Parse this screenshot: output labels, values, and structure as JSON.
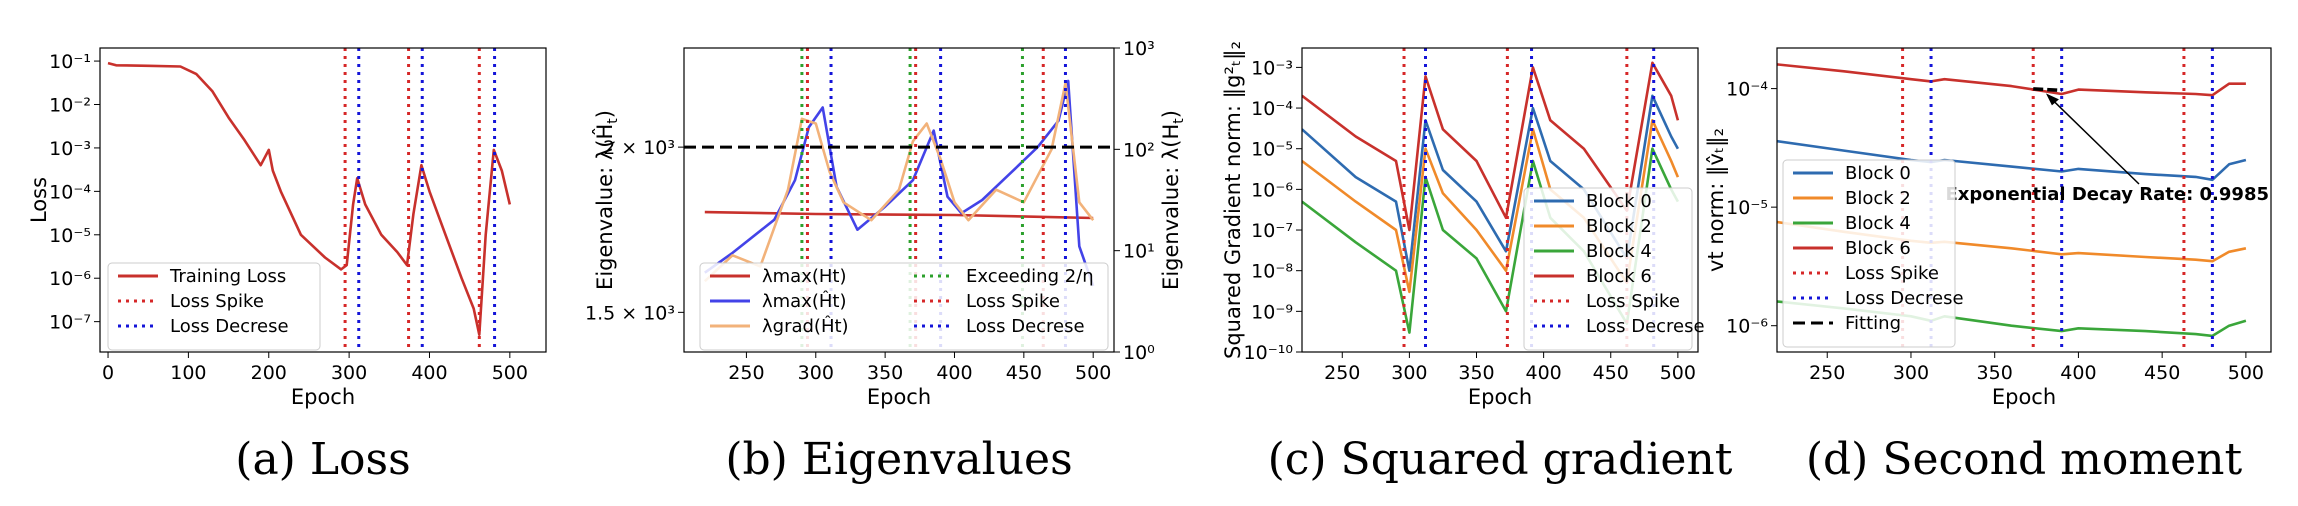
{
  "colors": {
    "red": "#c8312c",
    "blue": "#4343e8",
    "orange": "#f2b27a",
    "green": "#2ca02c",
    "dred": "#d62728",
    "dblue": "#1414d8",
    "black": "#000000",
    "b0": "#2e6bb0",
    "b2": "#f08a2a",
    "b4": "#3aa63a",
    "b6": "#c8312c"
  },
  "chart_data": [
    {
      "type": "line",
      "caption": "(a) Loss",
      "xlabel": "Epoch",
      "ylabel": "Loss",
      "yscale": "log",
      "xlim": [
        -10,
        545
      ],
      "ylim": [
        2e-08,
        0.2
      ],
      "xticks": [
        0,
        100,
        200,
        300,
        400,
        500
      ],
      "yticks": [
        {
          "v": 1e-07,
          "label": "10⁻⁷"
        },
        {
          "v": 1e-06,
          "label": "10⁻⁶"
        },
        {
          "v": 1e-05,
          "label": "10⁻⁵"
        },
        {
          "v": 0.0001,
          "label": "10⁻⁴"
        },
        {
          "v": 0.001,
          "label": "10⁻³"
        },
        {
          "v": 0.01,
          "label": "10⁻²"
        },
        {
          "v": 0.1,
          "label": "10⁻¹"
        }
      ],
      "series": [
        {
          "name": "Training Loss",
          "color": "red",
          "x": [
            0,
            10,
            50,
            90,
            110,
            130,
            150,
            170,
            190,
            200,
            205,
            215,
            240,
            270,
            290,
            297,
            305,
            310,
            320,
            340,
            360,
            372,
            380,
            390,
            400,
            420,
            440,
            455,
            462,
            470,
            480,
            490,
            500
          ],
          "y": [
            0.09,
            0.08,
            0.078,
            0.075,
            0.05,
            0.02,
            0.005,
            0.0015,
            0.0004,
            0.0009,
            0.0003,
            0.0001,
            1e-05,
            3e-06,
            1.6e-06,
            2e-06,
            5e-05,
            0.0002,
            5e-05,
            1e-05,
            4e-06,
            2e-06,
            3e-05,
            0.0004,
            0.0001,
            1e-05,
            1e-06,
            2e-07,
            5e-08,
            1e-05,
            0.0009,
            0.0003,
            5e-05
          ]
        }
      ],
      "vlines": [
        {
          "name": "Loss Spike",
          "color": "dred",
          "x": [
            295,
            374,
            462
          ]
        },
        {
          "name": "Loss Decrese",
          "color": "dblue",
          "x": [
            312,
            391,
            481
          ]
        }
      ],
      "legend": {
        "position": "lower-left",
        "entries": [
          {
            "label": "Training Loss",
            "color": "red",
            "style": "solid"
          },
          {
            "label": "Loss Spike",
            "color": "dred",
            "style": "dotted"
          },
          {
            "label": "Loss Decrese",
            "color": "dblue",
            "style": "dotted"
          }
        ]
      }
    },
    {
      "type": "line",
      "caption": "(b) Eigenvalues",
      "xlabel": "Epoch",
      "ylabel": "Eigenvalue: λ(Ĥ",
      "ylabel_sub": "t",
      "ylabel_close": ")",
      "ylabel_right": "Eigenvalue: λ(H",
      "ylabel_right_sub": "t",
      "ylabel_right_close": ")",
      "xlim": [
        205,
        515
      ],
      "ylim": [
        1.38,
        2.3
      ],
      "yscale_right": "log",
      "ylim_right": [
        1,
        1000
      ],
      "xticks": [
        250,
        300,
        350,
        400,
        450,
        500
      ],
      "yticks": [
        {
          "v": 1.5,
          "label": "1.5 × 10³"
        },
        {
          "v": 2.0,
          "label": "2 × 10³"
        }
      ],
      "yticks_right": [
        {
          "v": 1,
          "label": "10⁰"
        },
        {
          "v": 10,
          "label": "10¹"
        },
        {
          "v": 100,
          "label": "10²"
        },
        {
          "v": 1000,
          "label": "10³"
        }
      ],
      "hline": 2.0,
      "series": [
        {
          "name": "λmax(Ht)",
          "color": "red",
          "axis": "right",
          "x": [
            220,
            300,
            400,
            500
          ],
          "y": [
            24,
            23,
            22.5,
            21
          ]
        },
        {
          "name": "λmax(Ĥt)",
          "color": "blue",
          "axis": "left",
          "x": [
            220,
            240,
            270,
            285,
            295,
            305,
            315,
            330,
            350,
            370,
            385,
            395,
            405,
            420,
            440,
            460,
            475,
            482,
            490,
            500
          ],
          "y": [
            1.62,
            1.68,
            1.78,
            1.9,
            2.06,
            2.12,
            1.88,
            1.75,
            1.82,
            1.9,
            2.05,
            1.85,
            1.8,
            1.84,
            1.92,
            2.0,
            2.08,
            2.2,
            1.7,
            1.58
          ]
        },
        {
          "name": "λgrad(Ĥt)",
          "color": "orange",
          "axis": "right",
          "x": [
            220,
            240,
            260,
            280,
            290,
            300,
            310,
            320,
            340,
            360,
            370,
            380,
            390,
            400,
            410,
            430,
            450,
            470,
            480,
            490,
            500
          ],
          "y": [
            5,
            9,
            7,
            40,
            200,
            180,
            60,
            30,
            20,
            40,
            120,
            180,
            80,
            30,
            20,
            40,
            30,
            100,
            450,
            30,
            20
          ]
        }
      ],
      "vlines": [
        {
          "name": "Exceeding 2/η",
          "color": "green",
          "x": [
            290,
            368,
            449
          ]
        },
        {
          "name": "Loss Spike",
          "color": "dred",
          "x": [
            294,
            372,
            464
          ]
        },
        {
          "name": "Loss Decrese",
          "color": "dblue",
          "x": [
            311,
            390,
            480
          ]
        }
      ],
      "legend": {
        "position": "lower-right",
        "entries": [
          {
            "label": "λmax(Ht)",
            "color": "red",
            "style": "solid"
          },
          {
            "label": "λmax(Ĥt)",
            "color": "blue",
            "style": "solid"
          },
          {
            "label": "λgrad(Ĥt)",
            "color": "orange",
            "style": "solid"
          },
          {
            "label": "Exceeding 2/η",
            "color": "green",
            "style": "dotted"
          },
          {
            "label": "Loss Spike",
            "color": "dred",
            "style": "dotted"
          },
          {
            "label": "Loss Decrese",
            "color": "dblue",
            "style": "dotted"
          }
        ]
      }
    },
    {
      "type": "line",
      "caption": "(c) Squared gradient",
      "xlabel": "Epoch",
      "ylabel": "Squared Gradient norm: ‖g²ₜ‖₂",
      "yscale": "log",
      "xlim": [
        220,
        515
      ],
      "ylim": [
        1e-10,
        0.003
      ],
      "xticks": [
        250,
        300,
        350,
        400,
        450,
        500
      ],
      "yticks": [
        {
          "v": 1e-10,
          "label": "10⁻¹⁰"
        },
        {
          "v": 1e-09,
          "label": "10⁻⁹"
        },
        {
          "v": 1e-08,
          "label": "10⁻⁸"
        },
        {
          "v": 1e-07,
          "label": "10⁻⁷"
        },
        {
          "v": 1e-06,
          "label": "10⁻⁶"
        },
        {
          "v": 1e-05,
          "label": "10⁻⁵"
        },
        {
          "v": 0.0001,
          "label": "10⁻⁴"
        },
        {
          "v": 0.001,
          "label": "10⁻³"
        }
      ],
      "series": [
        {
          "name": "Block 0",
          "color": "b0",
          "x": [
            220,
            260,
            290,
            300,
            312,
            325,
            350,
            372,
            392,
            405,
            430,
            462,
            481,
            495,
            500
          ],
          "y": [
            3e-05,
            2e-06,
            5e-07,
            1e-08,
            5e-05,
            3e-06,
            5e-07,
            3e-08,
            0.0001,
            5e-06,
            1e-06,
            2e-08,
            0.0002,
            2e-05,
            1e-05
          ]
        },
        {
          "name": "Block 2",
          "color": "b2",
          "x": [
            220,
            260,
            290,
            300,
            312,
            325,
            350,
            372,
            392,
            405,
            430,
            462,
            481,
            495,
            500
          ],
          "y": [
            5e-06,
            5e-07,
            1e-07,
            3e-09,
            1e-05,
            8e-07,
            1e-07,
            1e-08,
            3e-05,
            1e-06,
            2e-07,
            5e-09,
            5e-05,
            5e-06,
            2e-06
          ]
        },
        {
          "name": "Block 4",
          "color": "b4",
          "x": [
            220,
            260,
            290,
            300,
            312,
            325,
            350,
            372,
            392,
            405,
            430,
            462,
            481,
            495,
            500
          ],
          "y": [
            5e-07,
            5e-08,
            1e-08,
            3e-10,
            2e-06,
            1e-07,
            2e-08,
            1e-09,
            5e-06,
            2e-07,
            3e-08,
            5e-10,
            1e-05,
            1e-06,
            5e-07
          ]
        },
        {
          "name": "Block 6",
          "color": "b6",
          "x": [
            220,
            260,
            290,
            300,
            312,
            325,
            350,
            372,
            392,
            405,
            430,
            462,
            481,
            495,
            500
          ],
          "y": [
            0.0002,
            2e-05,
            5e-06,
            1e-07,
            0.0006,
            3e-05,
            5e-06,
            2e-07,
            0.001,
            5e-05,
            1e-05,
            3e-07,
            0.0013,
            0.0002,
            5e-05
          ]
        }
      ],
      "vlines": [
        {
          "name": "Loss Spike",
          "color": "dred",
          "x": [
            296,
            373,
            462
          ]
        },
        {
          "name": "Loss Decrese",
          "color": "dblue",
          "x": [
            312,
            391,
            482
          ]
        }
      ],
      "legend": {
        "position": "lower-right",
        "entries": [
          {
            "label": "Block 0",
            "color": "b0",
            "style": "solid"
          },
          {
            "label": "Block 2",
            "color": "b2",
            "style": "solid"
          },
          {
            "label": "Block 4",
            "color": "b4",
            "style": "solid"
          },
          {
            "label": "Block 6",
            "color": "b6",
            "style": "solid"
          },
          {
            "label": "Loss Spike",
            "color": "dred",
            "style": "dotted"
          },
          {
            "label": "Loss Decrese",
            "color": "dblue",
            "style": "dotted"
          }
        ]
      }
    },
    {
      "type": "line",
      "caption": "(d) Second moment",
      "xlabel": "Epoch",
      "ylabel": "vt norm: ‖v̂ₜ‖₂",
      "yscale": "log",
      "xlim": [
        220,
        515
      ],
      "ylim": [
        6e-07,
        0.00022
      ],
      "xticks": [
        250,
        300,
        350,
        400,
        450,
        500
      ],
      "yticks": [
        {
          "v": 1e-06,
          "label": "10⁻⁶"
        },
        {
          "v": 1e-05,
          "label": "10⁻⁵"
        },
        {
          "v": 0.0001,
          "label": "10⁻⁴"
        }
      ],
      "series": [
        {
          "name": "Block 0",
          "color": "b0",
          "x": [
            220,
            260,
            300,
            312,
            320,
            360,
            390,
            400,
            440,
            470,
            480,
            490,
            500
          ],
          "y": [
            3.6e-05,
            3e-05,
            2.5e-05,
            2.4e-05,
            2.5e-05,
            2.2e-05,
            2e-05,
            2.1e-05,
            1.9e-05,
            1.8e-05,
            1.7e-05,
            2.3e-05,
            2.5e-05
          ]
        },
        {
          "name": "Block 2",
          "color": "b2",
          "x": [
            220,
            260,
            300,
            312,
            320,
            360,
            390,
            400,
            440,
            470,
            480,
            490,
            500
          ],
          "y": [
            7.5e-06,
            6.2e-06,
            5.2e-06,
            5e-06,
            5.1e-06,
            4.5e-06,
            4e-06,
            4.1e-06,
            3.8e-06,
            3.6e-06,
            3.5e-06,
            4.2e-06,
            4.5e-06
          ]
        },
        {
          "name": "Block 4",
          "color": "b4",
          "x": [
            220,
            260,
            300,
            312,
            320,
            360,
            390,
            400,
            440,
            470,
            480,
            490,
            500
          ],
          "y": [
            1.6e-06,
            1.4e-06,
            1.2e-06,
            1.1e-06,
            1.2e-06,
            1e-06,
            9e-07,
            9.5e-07,
            9e-07,
            8.5e-07,
            8.2e-07,
            1e-06,
            1.1e-06
          ]
        },
        {
          "name": "Block 6",
          "color": "b6",
          "x": [
            220,
            260,
            300,
            312,
            320,
            360,
            390,
            400,
            440,
            470,
            480,
            490,
            500
          ],
          "y": [
            0.00016,
            0.00014,
            0.00012,
            0.000115,
            0.00012,
            0.000105,
            9e-05,
            9.8e-05,
            9.3e-05,
            9e-05,
            8.8e-05,
            0.00011,
            0.00011
          ]
        }
      ],
      "fit_line": {
        "name": "Fitting",
        "x": [
          373,
          390
        ],
        "y": [
          9.95e-05,
          9.65e-05
        ]
      },
      "vlines": [
        {
          "name": "Loss Spike",
          "color": "dred",
          "x": [
            295,
            373,
            463
          ]
        },
        {
          "name": "Loss Decrese",
          "color": "dblue",
          "x": [
            312,
            390,
            480
          ]
        }
      ],
      "annotation": {
        "text": "Exponential Decay Rate: 0.9985",
        "x": 380,
        "y": 9.65e-05
      },
      "legend": {
        "position": "center-left",
        "entries": [
          {
            "label": "Block 0",
            "color": "b0",
            "style": "solid"
          },
          {
            "label": "Block 2",
            "color": "b2",
            "style": "solid"
          },
          {
            "label": "Block 4",
            "color": "b4",
            "style": "solid"
          },
          {
            "label": "Block 6",
            "color": "b6",
            "style": "solid"
          },
          {
            "label": "Loss Spike",
            "color": "dred",
            "style": "dotted"
          },
          {
            "label": "Loss Decrese",
            "color": "dblue",
            "style": "dotted"
          },
          {
            "label": "Fitting",
            "color": "black",
            "style": "dashed"
          }
        ]
      }
    }
  ]
}
